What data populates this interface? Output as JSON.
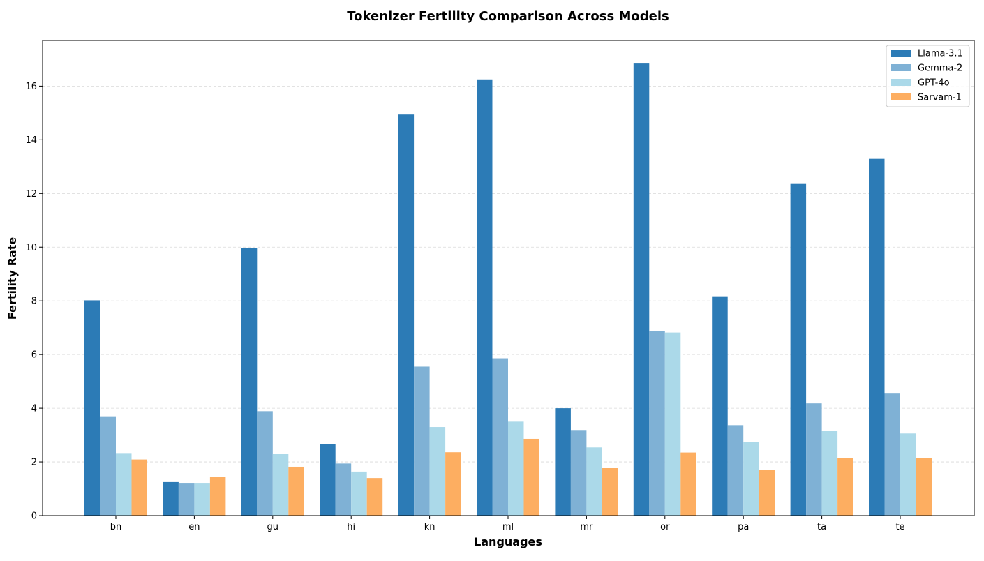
{
  "chart_data": {
    "type": "bar",
    "title": "Tokenizer Fertility Comparison Across Models",
    "xlabel": "Languages",
    "ylabel": "Fertility Rate",
    "categories": [
      "bn",
      "en",
      "gu",
      "hi",
      "kn",
      "ml",
      "mr",
      "or",
      "pa",
      "ta",
      "te"
    ],
    "ylim": [
      0,
      17.7
    ],
    "yticks": [
      0,
      2,
      4,
      6,
      8,
      10,
      12,
      14,
      16
    ],
    "grid": "horizontal dashed",
    "legend_position": "top-right",
    "series": [
      {
        "name": "Llama-3.1",
        "color": "#2c7bb6",
        "values": [
          8.02,
          1.25,
          9.96,
          2.67,
          14.94,
          16.25,
          4.0,
          16.84,
          8.17,
          12.38,
          13.29
        ]
      },
      {
        "name": "Gemma-2",
        "color": "#7fb1d5",
        "values": [
          3.7,
          1.22,
          3.89,
          1.94,
          5.55,
          5.86,
          3.19,
          6.87,
          3.37,
          4.18,
          4.57
        ]
      },
      {
        "name": "GPT-4o",
        "color": "#abd9e9",
        "values": [
          2.33,
          1.22,
          2.29,
          1.64,
          3.3,
          3.5,
          2.54,
          6.82,
          2.73,
          3.16,
          3.06
        ]
      },
      {
        "name": "Sarvam-1",
        "color": "#fdae61",
        "values": [
          2.09,
          1.44,
          1.82,
          1.4,
          2.36,
          2.86,
          1.77,
          2.35,
          1.69,
          2.15,
          2.14
        ]
      }
    ]
  }
}
